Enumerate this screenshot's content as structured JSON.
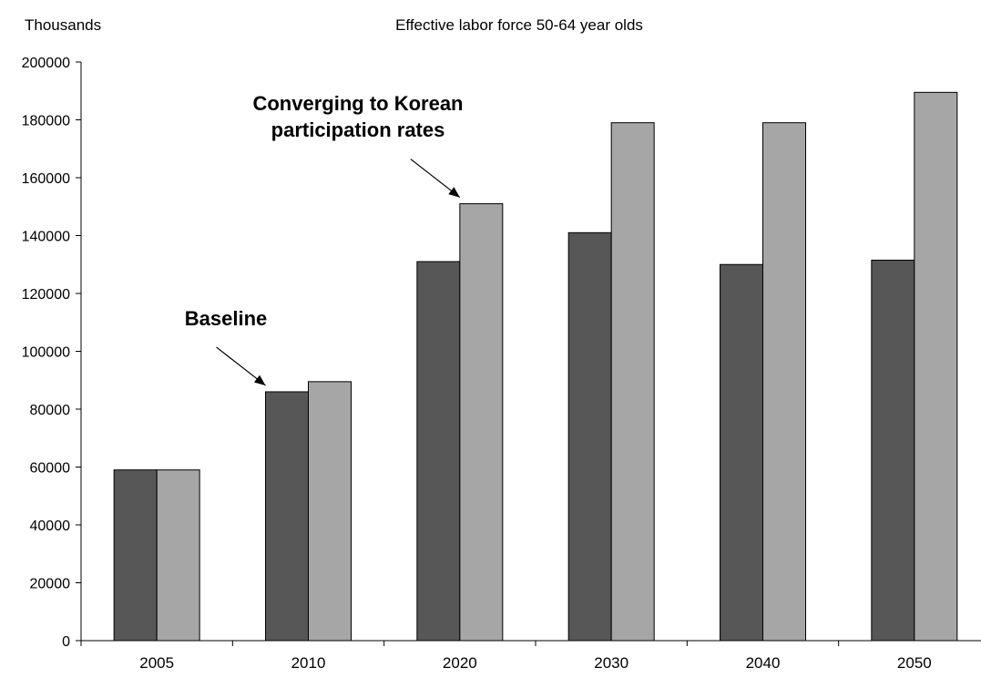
{
  "chart_data": {
    "type": "bar",
    "title": "Effective labor force 50-64 year olds",
    "ylabel": "Thousands",
    "xlabel": "",
    "categories": [
      "2005",
      "2010",
      "2020",
      "2030",
      "2040",
      "2050"
    ],
    "series": [
      {
        "values": [
          59000,
          86000,
          131000,
          141000,
          130000,
          131500
        ],
        "color": "#575757"
      },
      {
        "values": [
          59000,
          89500,
          151000,
          179000,
          179000,
          189500
        ],
        "color": "#a6a6a6"
      }
    ],
    "ylim": [
      0,
      200000
    ],
    "yticks": [
      "0",
      "20000",
      "40000",
      "60000",
      "80000",
      "100000",
      "120000",
      "140000",
      "160000",
      "180000",
      "200000"
    ],
    "grid": false,
    "legend": "none",
    "annotations": [
      {
        "lines": [
          "Baseline"
        ],
        "series_index": 0,
        "category": "2010"
      },
      {
        "lines": [
          "Converging to Korean",
          "participation rates"
        ],
        "series_index": 1,
        "category": "2020"
      }
    ]
  }
}
